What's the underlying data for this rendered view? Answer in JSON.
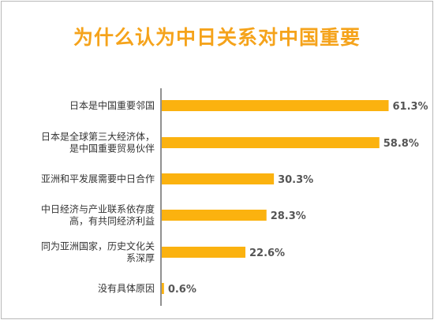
{
  "chart_data": {
    "type": "bar",
    "orientation": "horizontal",
    "title": "为什么认为中日关系对中国重要",
    "categories": [
      [
        "日本是中国重要邻国"
      ],
      [
        "日本是全球第三大经济体，",
        "是中国重要贸易伙伴"
      ],
      [
        "亚洲和平发展需要中日合作"
      ],
      [
        "中日经济与产业联系依存度",
        "高，有共同经济利益"
      ],
      [
        "同为亚洲国家，历史文化关",
        "系深厚"
      ],
      [
        "没有具体原因"
      ]
    ],
    "values": [
      61.3,
      58.8,
      30.3,
      28.3,
      22.6,
      0.6
    ],
    "value_labels": [
      "61.3%",
      "58.8%",
      "30.3%",
      "28.3%",
      "22.6%",
      "0.6%"
    ],
    "unit": "%",
    "xlim": [
      0,
      65
    ],
    "grid": false,
    "legend": "none",
    "colors": {
      "bar": "#fbb20f",
      "title": "#f5a31b",
      "axis": "#222222"
    }
  }
}
